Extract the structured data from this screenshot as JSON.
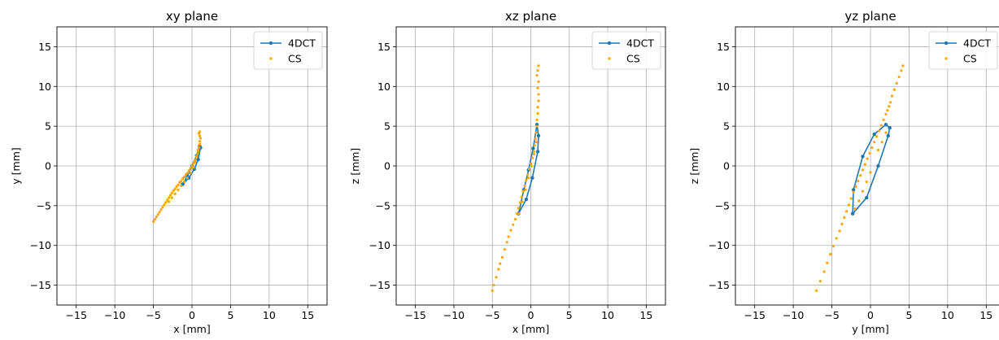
{
  "colors": {
    "series_4dct": "#1f77b4",
    "series_cs": "#ffa500",
    "grid": "#b0b0b0"
  },
  "chart_data": [
    {
      "type": "scatter",
      "title": "xy plane",
      "xlabel": "x [mm]",
      "ylabel": "y [mm]",
      "xlim": [
        -17.5,
        17.5
      ],
      "ylim": [
        -17.5,
        17.5
      ],
      "xticks": [
        -15,
        -10,
        -5,
        0,
        5,
        10,
        15
      ],
      "yticks": [
        -15,
        -10,
        -5,
        0,
        5,
        10,
        15
      ],
      "tick_labels_x": [
        "−15",
        "−10",
        "−5",
        "0",
        "5",
        "10",
        "15"
      ],
      "tick_labels_y": [
        "−15",
        "−10",
        "−5",
        "0",
        "5",
        "10",
        "15"
      ],
      "grid": true,
      "legend": {
        "placement": "top-right",
        "entries": [
          "4DCT",
          "CS"
        ]
      },
      "series": [
        {
          "name": "4DCT",
          "style": "line-marker",
          "x": [
            -1.2,
            -0.4,
            0.3,
            0.8,
            1.1,
            1.0,
            0.6,
            0.0,
            -0.6,
            -1.2
          ],
          "y": [
            -2.3,
            -1.5,
            -0.4,
            0.8,
            2.3,
            2.5,
            1.3,
            0.0,
            -1.3,
            -2.3
          ]
        },
        {
          "name": "CS",
          "style": "points",
          "x": [
            -5.0,
            -4.8,
            -4.6,
            -4.4,
            -4.2,
            -4.0,
            -3.8,
            -3.6,
            -3.4,
            -3.2,
            -3.0,
            -2.8,
            -2.6,
            -2.4,
            -2.2,
            -2.0,
            -1.8,
            -1.6,
            -1.4,
            -1.2,
            -1.0,
            -0.8,
            -0.6,
            -0.4,
            -0.2,
            0.0,
            0.2,
            0.4,
            0.6,
            0.7,
            0.8,
            0.9,
            1.0,
            1.0,
            1.1,
            1.0,
            0.9,
            1.0,
            0.8,
            0.6,
            0.4,
            0.2,
            -0.2,
            -0.6,
            -1.0,
            -1.4,
            -1.8,
            -2.2,
            -2.6,
            -3.0
          ],
          "y": [
            -7.0,
            -6.7,
            -6.4,
            -6.1,
            -5.8,
            -5.5,
            -5.2,
            -4.9,
            -4.6,
            -4.3,
            -4.0,
            -3.7,
            -3.4,
            -3.1,
            -2.9,
            -2.6,
            -2.4,
            -2.1,
            -1.9,
            -1.6,
            -1.4,
            -1.1,
            -0.9,
            -0.6,
            -0.3,
            0.0,
            0.3,
            0.7,
            1.1,
            1.5,
            1.9,
            2.3,
            2.7,
            3.1,
            3.5,
            3.8,
            4.1,
            4.3,
            2.0,
            1.2,
            0.5,
            -0.2,
            -0.9,
            -1.5,
            -2.0,
            -2.5,
            -3.0,
            -3.5,
            -4.0,
            -4.5
          ]
        }
      ]
    },
    {
      "type": "scatter",
      "title": "xz plane",
      "xlabel": "x [mm]",
      "ylabel": "z [mm]",
      "xlim": [
        -17.5,
        17.5
      ],
      "ylim": [
        -17.5,
        17.5
      ],
      "xticks": [
        -15,
        -10,
        -5,
        0,
        5,
        10,
        15
      ],
      "yticks": [
        -15,
        -10,
        -5,
        0,
        5,
        10,
        15
      ],
      "tick_labels_x": [
        "−15",
        "−10",
        "−5",
        "0",
        "5",
        "10",
        "15"
      ],
      "tick_labels_y": [
        "−15",
        "−10",
        "−5",
        "0",
        "5",
        "10",
        "15"
      ],
      "grid": true,
      "legend": {
        "placement": "top-right",
        "entries": [
          "4DCT",
          "CS"
        ]
      },
      "series": [
        {
          "name": "4DCT",
          "style": "line-marker",
          "x": [
            -1.6,
            -0.6,
            0.2,
            0.9,
            1.0,
            0.8,
            0.3,
            -0.3,
            -0.9,
            -1.6
          ],
          "y": [
            -6.0,
            -4.2,
            -1.5,
            1.8,
            3.8,
            5.2,
            2.2,
            -0.5,
            -3.0,
            -6.0
          ]
        },
        {
          "name": "CS",
          "style": "points",
          "x": [
            -5.0,
            -4.8,
            -4.5,
            -4.2,
            -4.0,
            -3.7,
            -3.4,
            -3.1,
            -2.9,
            -2.6,
            -2.3,
            -2.0,
            -1.8,
            -1.6,
            -1.4,
            -1.2,
            -1.0,
            -0.8,
            -0.6,
            -0.4,
            -0.2,
            0.0,
            0.2,
            0.4,
            0.5,
            0.6,
            0.7,
            0.8,
            0.8,
            0.9,
            0.9,
            1.0,
            1.0,
            0.9,
            1.0,
            0.8,
            0.9,
            1.0,
            0.7,
            0.4,
            0.1,
            -0.3,
            -0.7,
            -1.1,
            -1.5
          ],
          "y": [
            -15.7,
            -15.0,
            -14.0,
            -13.0,
            -12.3,
            -11.5,
            -10.5,
            -9.6,
            -8.9,
            -8.1,
            -7.4,
            -6.7,
            -6.0,
            -5.3,
            -4.6,
            -3.9,
            -3.2,
            -2.5,
            -1.8,
            -1.1,
            -0.4,
            0.3,
            1.0,
            1.8,
            2.6,
            3.4,
            4.2,
            5.0,
            5.8,
            6.6,
            7.4,
            8.2,
            9.0,
            9.8,
            10.6,
            11.4,
            12.0,
            12.6,
            3.0,
            1.5,
            0.0,
            -1.5,
            -3.0,
            -4.5,
            -6.0
          ]
        }
      ]
    },
    {
      "type": "scatter",
      "title": "yz plane",
      "xlabel": "y [mm]",
      "ylabel": "z [mm]",
      "xlim": [
        -17.5,
        17.5
      ],
      "ylim": [
        -17.5,
        17.5
      ],
      "xticks": [
        -15,
        -10,
        -5,
        0,
        5,
        10,
        15
      ],
      "yticks": [
        -15,
        -10,
        -5,
        0,
        5,
        10,
        15
      ],
      "tick_labels_x": [
        "−15",
        "−10",
        "−5",
        "0",
        "5",
        "10",
        "15"
      ],
      "tick_labels_y": [
        "−15",
        "−10",
        "−5",
        "0",
        "5",
        "10",
        "15"
      ],
      "grid": true,
      "legend": {
        "placement": "top-right",
        "entries": [
          "4DCT",
          "CS"
        ]
      },
      "series": [
        {
          "name": "4DCT",
          "style": "line-marker",
          "x": [
            -2.3,
            -0.5,
            1.0,
            2.3,
            2.5,
            2.0,
            0.5,
            -1.0,
            -2.2,
            -2.3
          ],
          "y": [
            -6.0,
            -4.0,
            0.0,
            3.8,
            4.8,
            5.2,
            4.0,
            1.2,
            -3.0,
            -6.0
          ]
        },
        {
          "name": "CS",
          "style": "points",
          "x": [
            -7.0,
            -6.5,
            -6.0,
            -5.6,
            -5.2,
            -4.8,
            -4.4,
            -4.0,
            -3.7,
            -3.4,
            -3.1,
            -2.8,
            -2.5,
            -2.2,
            -1.9,
            -1.6,
            -1.3,
            -1.0,
            -0.7,
            -0.4,
            -0.1,
            0.2,
            0.5,
            0.8,
            1.1,
            1.4,
            1.7,
            2.0,
            2.2,
            2.4,
            2.6,
            2.8,
            3.1,
            3.4,
            3.7,
            4.0,
            4.2,
            0.0,
            -0.5,
            -1.0,
            -1.5,
            -2.0,
            1.0,
            1.5,
            2.0
          ],
          "y": [
            -15.7,
            -14.5,
            -13.3,
            -12.2,
            -11.1,
            -10.1,
            -9.1,
            -8.2,
            -7.3,
            -6.5,
            -5.7,
            -4.9,
            -4.1,
            -3.3,
            -2.6,
            -1.9,
            -1.2,
            -0.5,
            0.2,
            0.9,
            1.6,
            2.3,
            3.0,
            3.7,
            4.4,
            5.1,
            5.8,
            6.5,
            7.0,
            7.5,
            8.0,
            8.8,
            9.6,
            10.4,
            11.2,
            12.0,
            12.6,
            -0.8,
            -2.0,
            -3.2,
            -4.4,
            -5.4,
            2.0,
            3.0,
            4.2
          ]
        }
      ]
    }
  ]
}
